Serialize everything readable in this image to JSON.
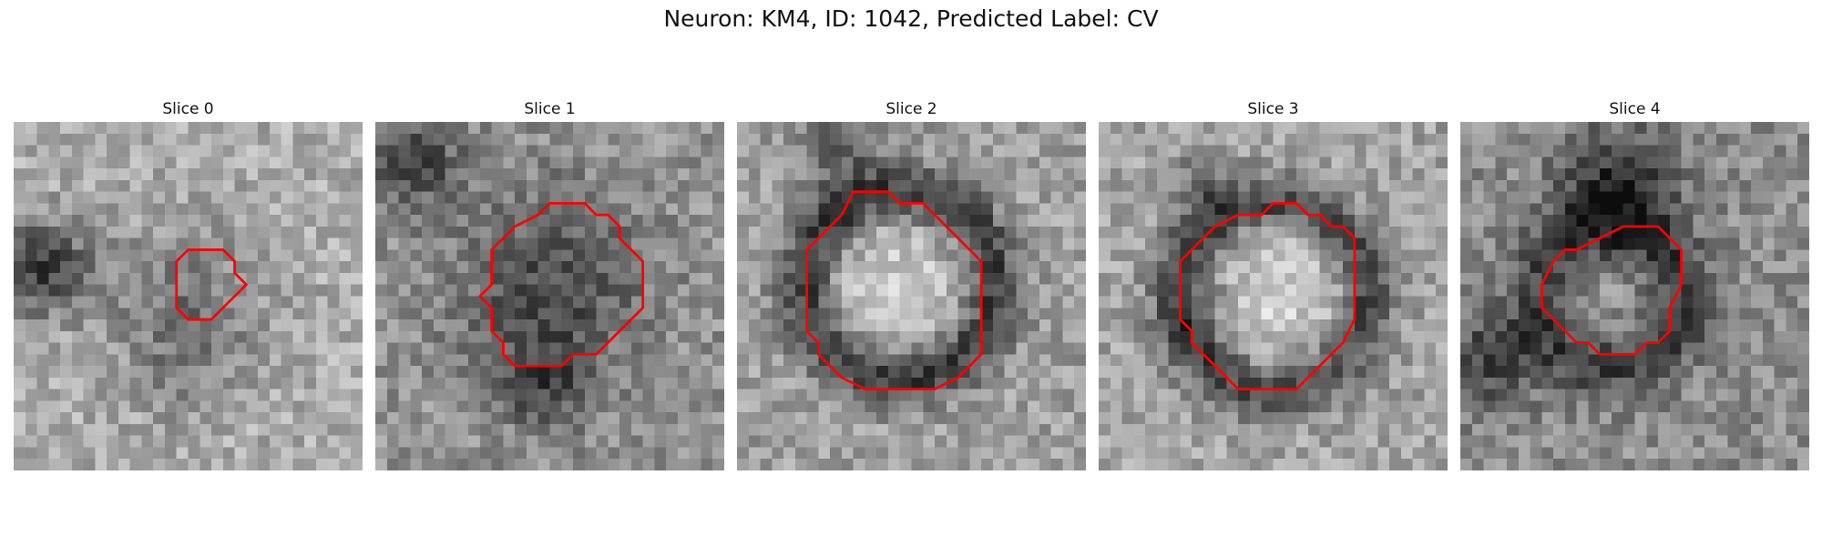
{
  "figure": {
    "title": "Neuron: KM4, ID: 1042, Predicted Label: CV"
  },
  "contour_color": "#ff0000",
  "colormap": "grayscale",
  "panels": [
    {
      "label": "Slice 0",
      "image": "grayscale-texture-small-dark-blob",
      "contour": [
        [
          15,
          11
        ],
        [
          18,
          11
        ],
        [
          19,
          12
        ],
        [
          19,
          13
        ],
        [
          20,
          14
        ],
        [
          18,
          16
        ],
        [
          17,
          17
        ],
        [
          15,
          17
        ],
        [
          14,
          16
        ],
        [
          14,
          12
        ]
      ]
    },
    {
      "label": "Slice 1",
      "image": "grayscale-texture-dark-blob",
      "contour": [
        [
          15,
          7
        ],
        [
          18,
          7
        ],
        [
          19,
          8
        ],
        [
          20,
          8
        ],
        [
          21,
          9
        ],
        [
          21,
          10
        ],
        [
          23,
          12
        ],
        [
          23,
          16
        ],
        [
          21,
          18
        ],
        [
          19,
          20
        ],
        [
          17,
          20
        ],
        [
          16,
          21
        ],
        [
          12,
          21
        ],
        [
          11,
          20
        ],
        [
          11,
          19
        ],
        [
          10,
          18
        ],
        [
          10,
          16
        ],
        [
          9,
          15
        ],
        [
          10,
          14
        ],
        [
          10,
          11
        ],
        [
          12,
          9
        ],
        [
          14,
          8
        ]
      ]
    },
    {
      "label": "Slice 2",
      "image": "grayscale-texture-bright-ring",
      "contour": [
        [
          10,
          6
        ],
        [
          13,
          6
        ],
        [
          14,
          7
        ],
        [
          16,
          7
        ],
        [
          18,
          9
        ],
        [
          19,
          10
        ],
        [
          20,
          11
        ],
        [
          21,
          12
        ],
        [
          21,
          20
        ],
        [
          20,
          21
        ],
        [
          19,
          22
        ],
        [
          17,
          23
        ],
        [
          11,
          23
        ],
        [
          9,
          22
        ],
        [
          8,
          21
        ],
        [
          7,
          20
        ],
        [
          7,
          19
        ],
        [
          6,
          18
        ],
        [
          6,
          11
        ],
        [
          7,
          10
        ],
        [
          8,
          9
        ],
        [
          9,
          8
        ]
      ]
    },
    {
      "label": "Slice 3",
      "image": "grayscale-texture-bright-ring",
      "contour": [
        [
          15,
          7
        ],
        [
          17,
          7
        ],
        [
          18,
          8
        ],
        [
          19,
          8
        ],
        [
          20,
          9
        ],
        [
          21,
          9
        ],
        [
          22,
          10
        ],
        [
          22,
          17
        ],
        [
          21,
          19
        ],
        [
          20,
          20
        ],
        [
          19,
          21
        ],
        [
          18,
          22
        ],
        [
          17,
          23
        ],
        [
          12,
          23
        ],
        [
          11,
          22
        ],
        [
          10,
          21
        ],
        [
          9,
          20
        ],
        [
          8,
          19
        ],
        [
          8,
          18
        ],
        [
          7,
          17
        ],
        [
          7,
          12
        ],
        [
          8,
          11
        ],
        [
          10,
          9
        ],
        [
          12,
          8
        ],
        [
          14,
          8
        ]
      ]
    },
    {
      "label": "Slice 4",
      "image": "grayscale-texture-dark-ring",
      "contour": [
        [
          14,
          9
        ],
        [
          17,
          9
        ],
        [
          18,
          10
        ],
        [
          19,
          11
        ],
        [
          19,
          14
        ],
        [
          18,
          16
        ],
        [
          18,
          18
        ],
        [
          17,
          19
        ],
        [
          16,
          19
        ],
        [
          15,
          20
        ],
        [
          12,
          20
        ],
        [
          11,
          19
        ],
        [
          10,
          19
        ],
        [
          8,
          17
        ],
        [
          7,
          16
        ],
        [
          7,
          14
        ],
        [
          8,
          12
        ],
        [
          9,
          11
        ],
        [
          10,
          11
        ],
        [
          12,
          10
        ]
      ]
    }
  ]
}
